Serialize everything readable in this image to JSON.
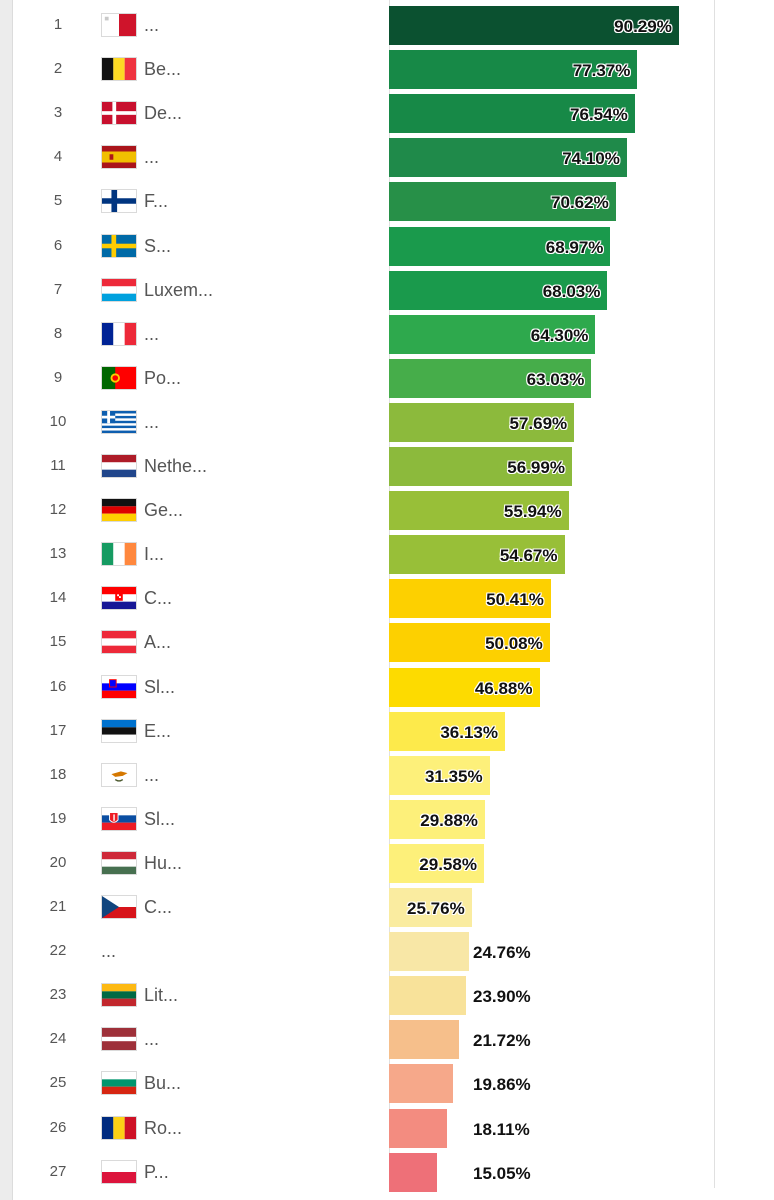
{
  "chart_data": {
    "type": "bar",
    "orientation": "horizontal",
    "xlim": [
      0,
      100
    ],
    "value_suffix": "%",
    "rows": [
      {
        "rank": "1",
        "label": "...",
        "flag": "malta-flag",
        "value": 90.29,
        "value_label": "90.29%",
        "color": "#0b5130"
      },
      {
        "rank": "2",
        "label": "Be...",
        "flag": "belgium-flag",
        "value": 77.37,
        "value_label": "77.37%",
        "color": "#178947"
      },
      {
        "rank": "3",
        "label": "De...",
        "flag": "denmark-flag",
        "value": 76.54,
        "value_label": "76.54%",
        "color": "#178947"
      },
      {
        "rank": "4",
        "label": "...",
        "flag": "spain-flag",
        "value": 74.1,
        "value_label": "74.10%",
        "color": "#1f8a4a"
      },
      {
        "rank": "5",
        "label": "F...",
        "flag": "finland-flag",
        "value": 70.62,
        "value_label": "70.62%",
        "color": "#279048"
      },
      {
        "rank": "6",
        "label": "S...",
        "flag": "sweden-flag",
        "value": 68.97,
        "value_label": "68.97%",
        "color": "#1a9a4c"
      },
      {
        "rank": "7",
        "label": "Luxem...",
        "flag": "luxembourg-flag",
        "value": 68.03,
        "value_label": "68.03%",
        "color": "#1a9a4c"
      },
      {
        "rank": "8",
        "label": "...",
        "flag": "france-flag",
        "value": 64.3,
        "value_label": "64.30%",
        "color": "#2ea94d"
      },
      {
        "rank": "9",
        "label": "Po...",
        "flag": "portugal-flag",
        "value": 63.03,
        "value_label": "63.03%",
        "color": "#46ad4a"
      },
      {
        "rank": "10",
        "label": "...",
        "flag": "greece-flag",
        "value": 57.69,
        "value_label": "57.69%",
        "color": "#8cba3c"
      },
      {
        "rank": "11",
        "label": "Nethe...",
        "flag": "netherlands-flag",
        "value": 56.99,
        "value_label": "56.99%",
        "color": "#8cba3c"
      },
      {
        "rank": "12",
        "label": "Ge...",
        "flag": "germany-flag",
        "value": 55.94,
        "value_label": "55.94%",
        "color": "#98bf38"
      },
      {
        "rank": "13",
        "label": "I...",
        "flag": "ireland-flag",
        "value": 54.67,
        "value_label": "54.67%",
        "color": "#98bf38"
      },
      {
        "rank": "14",
        "label": "C...",
        "flag": "croatia-flag",
        "value": 50.41,
        "value_label": "50.41%",
        "color": "#fdd000"
      },
      {
        "rank": "15",
        "label": "A...",
        "flag": "austria-flag",
        "value": 50.08,
        "value_label": "50.08%",
        "color": "#fdd000"
      },
      {
        "rank": "16",
        "label": "Sl...",
        "flag": "slovenia-flag",
        "value": 46.88,
        "value_label": "46.88%",
        "color": "#fddb00"
      },
      {
        "rank": "17",
        "label": "E...",
        "flag": "estonia-flag",
        "value": 36.13,
        "value_label": "36.13%",
        "color": "#fdea4b"
      },
      {
        "rank": "18",
        "label": "...",
        "flag": "cyprus-flag",
        "value": 31.35,
        "value_label": "31.35%",
        "color": "#fdf07a"
      },
      {
        "rank": "19",
        "label": "Sl...",
        "flag": "slovakia-flag",
        "value": 29.88,
        "value_label": "29.88%",
        "color": "#fdf07a"
      },
      {
        "rank": "20",
        "label": "Hu...",
        "flag": "hungary-flag",
        "value": 29.58,
        "value_label": "29.58%",
        "color": "#fdf07a"
      },
      {
        "rank": "21",
        "label": "C...",
        "flag": "czech-republic-flag",
        "value": 25.76,
        "value_label": "25.76%",
        "color": "#faeca0"
      },
      {
        "rank": "22",
        "label": "...",
        "flag": "",
        "value": 24.76,
        "value_label": "24.76%",
        "color": "#f8e7a6"
      },
      {
        "rank": "23",
        "label": "Lit...",
        "flag": "lithuania-flag",
        "value": 23.9,
        "value_label": "23.90%",
        "color": "#f8e29a"
      },
      {
        "rank": "24",
        "label": "...",
        "flag": "latvia-flag",
        "value": 21.72,
        "value_label": "21.72%",
        "color": "#f6bf8b"
      },
      {
        "rank": "25",
        "label": "Bu...",
        "flag": "bulgaria-flag",
        "value": 19.86,
        "value_label": "19.86%",
        "color": "#f6a88a"
      },
      {
        "rank": "26",
        "label": "Ro...",
        "flag": "romania-flag",
        "value": 18.11,
        "value_label": "18.11%",
        "color": "#f38c80"
      },
      {
        "rank": "27",
        "label": "P...",
        "flag": "poland-flag",
        "value": 15.05,
        "value_label": "15.05%",
        "color": "#ee7078"
      }
    ]
  }
}
